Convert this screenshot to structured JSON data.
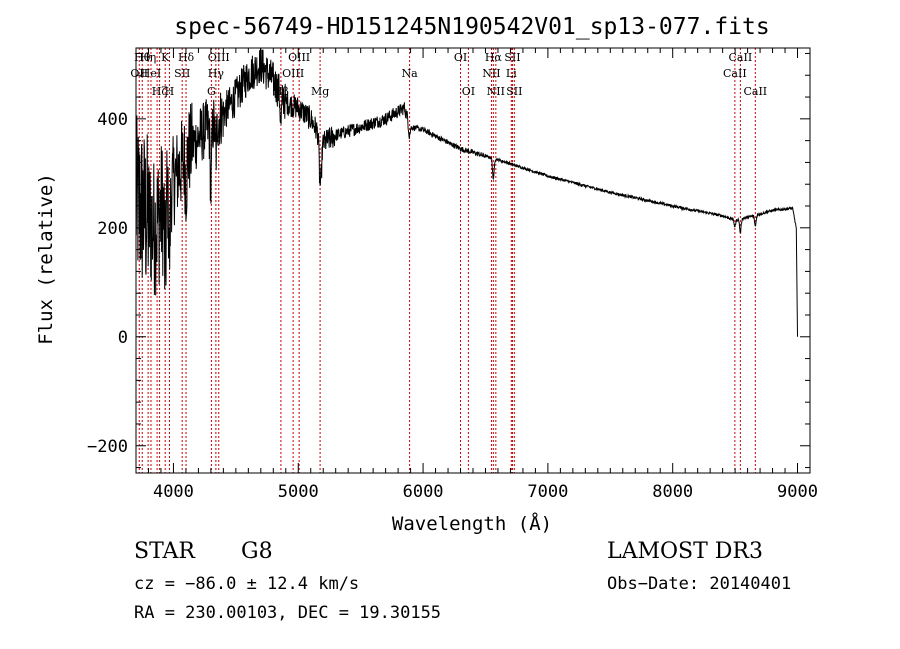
{
  "chart_data": {
    "type": "line",
    "title": "spec-56749-HD151245N190542V01_sp13-077.fits",
    "xlabel": "Wavelength (Å)",
    "ylabel": "Flux (relative)",
    "xlim": [
      3700,
      9100
    ],
    "ylim": [
      -250,
      530
    ],
    "x_ticks": [
      4000,
      5000,
      6000,
      7000,
      8000,
      9000
    ],
    "x_tick_labels": [
      "4000",
      "5000",
      "6000",
      "7000",
      "8000",
      "9000"
    ],
    "y_ticks": [
      -200,
      0,
      200,
      400
    ],
    "y_tick_labels": [
      "−200",
      "0",
      "200",
      "400"
    ],
    "spectrum_anchors": {
      "x": [
        3700,
        3760,
        3850,
        3950,
        4050,
        4150,
        4250,
        4350,
        4500,
        4600,
        4700,
        4800,
        4900,
        5000,
        5100,
        5200,
        5300,
        5500,
        5700,
        5850,
        5900,
        6000,
        6300,
        6600,
        7000,
        7500,
        8000,
        8400,
        8500,
        8650,
        8800,
        8960,
        8990,
        9000
      ],
      "y": [
        250,
        230,
        200,
        260,
        310,
        350,
        380,
        395,
        440,
        480,
        500,
        470,
        430,
        420,
        400,
        355,
        370,
        385,
        400,
        420,
        385,
        380,
        345,
        325,
        295,
        265,
        240,
        222,
        214,
        222,
        232,
        236,
        200,
        0
      ]
    },
    "absorption_features": [
      {
        "x": 3934,
        "depth": 130
      },
      {
        "x": 3968,
        "depth": 120
      },
      {
        "x": 4101,
        "depth": 50
      },
      {
        "x": 4300,
        "depth": 120
      },
      {
        "x": 4340,
        "depth": 60
      },
      {
        "x": 4861,
        "depth": 55
      },
      {
        "x": 5172,
        "depth": 70
      },
      {
        "x": 5183,
        "depth": 60
      },
      {
        "x": 5890,
        "depth": 20
      },
      {
        "x": 6563,
        "depth": 40
      },
      {
        "x": 8498,
        "depth": 12
      },
      {
        "x": 8542,
        "depth": 25
      },
      {
        "x": 8662,
        "depth": 20
      }
    ],
    "line_markers": [
      {
        "x": 3726,
        "label": "OII",
        "row": 2
      },
      {
        "x": 3750,
        "label": "Hθ",
        "row": 1
      },
      {
        "x": 3797,
        "label": "Hη",
        "row": 1
      },
      {
        "x": 3820,
        "label": "HeI",
        "row": 2
      },
      {
        "x": 3869,
        "label": "",
        "row": 0
      },
      {
        "x": 3889,
        "label": "Hζ",
        "row": 3
      },
      {
        "x": 3934,
        "label": "K",
        "row": 1
      },
      {
        "x": 3968,
        "label": "H",
        "row": 3
      },
      {
        "x": 4070,
        "label": "SII",
        "row": 2
      },
      {
        "x": 4101,
        "label": "Hδ",
        "row": 1
      },
      {
        "x": 4304,
        "label": "G",
        "row": 3
      },
      {
        "x": 4340,
        "label": "Hγ",
        "row": 2
      },
      {
        "x": 4363,
        "label": "OIII",
        "row": 1
      },
      {
        "x": 4861,
        "label": "Hβ",
        "row": 3
      },
      {
        "x": 4959,
        "label": "OIII",
        "row": 2
      },
      {
        "x": 5007,
        "label": "OIII",
        "row": 1
      },
      {
        "x": 5175,
        "label": "Mg",
        "row": 3
      },
      {
        "x": 5892,
        "label": "Na",
        "row": 2
      },
      {
        "x": 6300,
        "label": "OI",
        "row": 1
      },
      {
        "x": 6363,
        "label": "OI",
        "row": 3
      },
      {
        "x": 6548,
        "label": "NII",
        "row": 2
      },
      {
        "x": 6563,
        "label": "Hα",
        "row": 1
      },
      {
        "x": 6583,
        "label": "NII",
        "row": 3
      },
      {
        "x": 6707,
        "label": "Li",
        "row": 2
      },
      {
        "x": 6716,
        "label": "SII",
        "row": 1
      },
      {
        "x": 6731,
        "label": "SII",
        "row": 3
      },
      {
        "x": 8498,
        "label": "CaII",
        "row": 2
      },
      {
        "x": 8542,
        "label": "CaII",
        "row": 1
      },
      {
        "x": 8662,
        "label": "CaII",
        "row": 3
      }
    ]
  },
  "info": {
    "object_class": "STAR",
    "subclass": "G8",
    "survey": "LAMOST DR3",
    "redshift": "cz = −86.0 ± 12.4 km/s",
    "obs_date": "Obs−Date: 20140401",
    "coords": "RA = 230.00103, DEC =  19.30155"
  },
  "colors": {
    "spectrum": "#000000",
    "line_markers": "#cc0000",
    "axes": "#000000"
  }
}
